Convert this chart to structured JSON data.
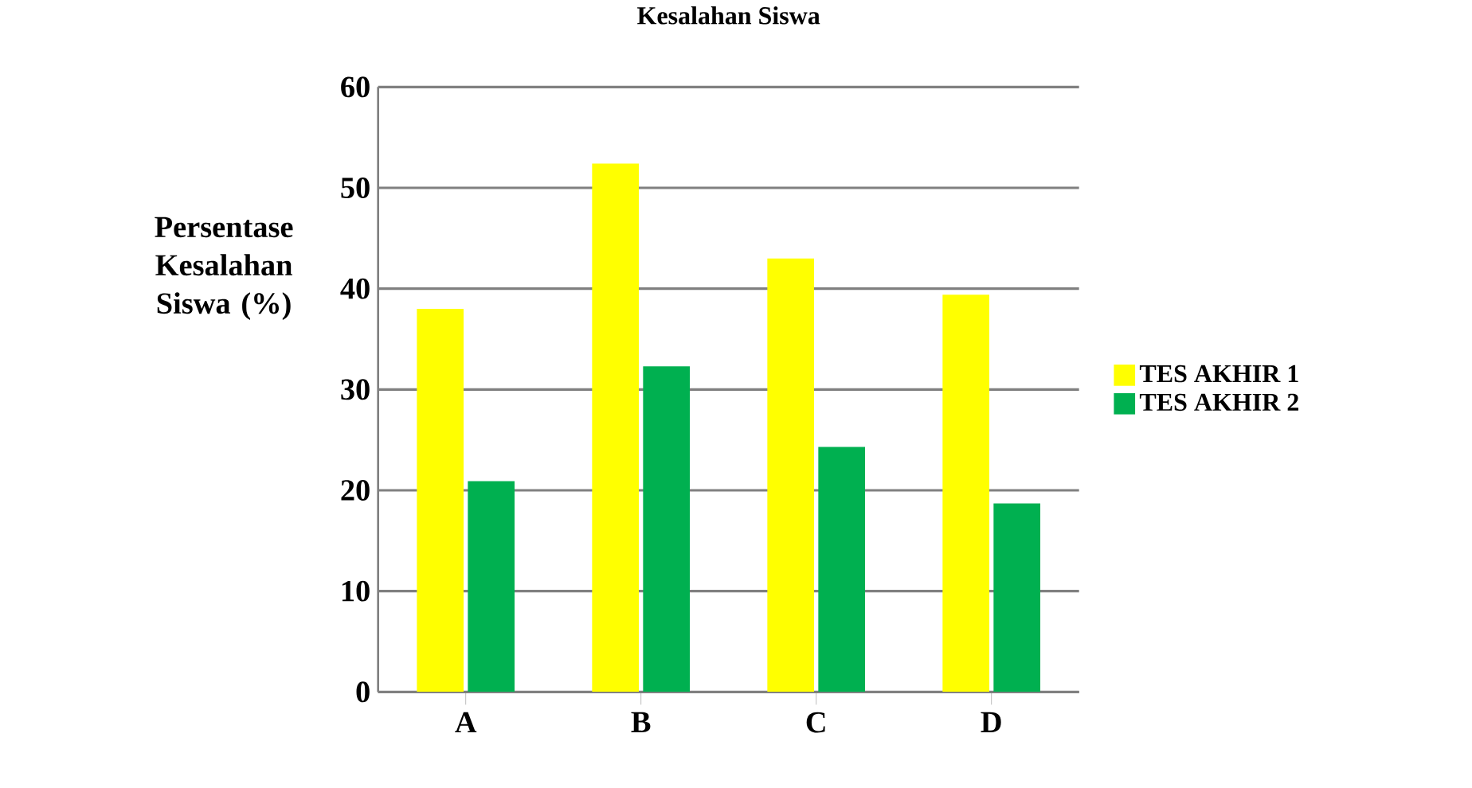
{
  "chart_data": {
    "type": "bar",
    "title": "Kesalahan Siswa",
    "ylabel": "Persentase Kesalahan Siswa (%)",
    "categories": [
      "A",
      "B",
      "C",
      "D"
    ],
    "series": [
      {
        "name": "TES AKHIR 1",
        "color": "#ffff00",
        "values": [
          38,
          52.4,
          43,
          39.4
        ]
      },
      {
        "name": "TES AKHIR 2",
        "color": "#00b050",
        "values": [
          20.9,
          32.3,
          24.3,
          18.7
        ]
      }
    ],
    "ylim": [
      0,
      60
    ],
    "yticks": [
      0,
      10,
      20,
      30,
      40,
      50,
      60
    ],
    "grid": "y",
    "legend": "right"
  }
}
